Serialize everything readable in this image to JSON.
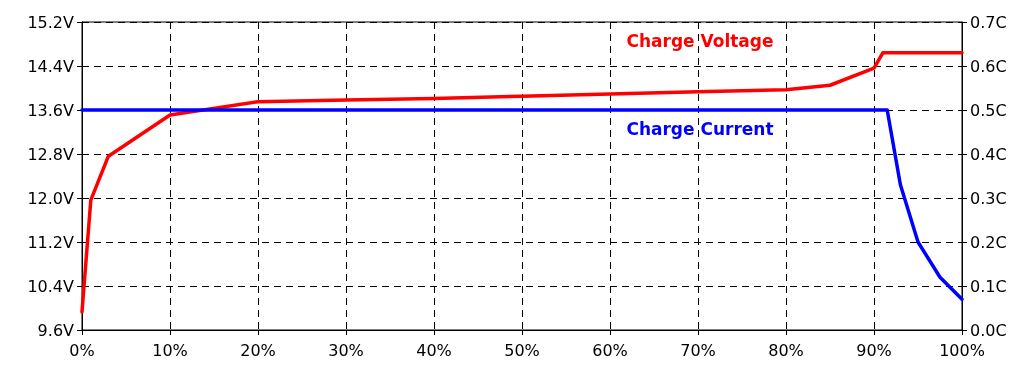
{
  "chart_data": {
    "type": "line",
    "x": [
      0,
      1,
      3,
      10,
      20,
      30,
      40,
      50,
      60,
      70,
      80,
      85,
      90,
      91,
      100
    ],
    "series": [
      {
        "name": "Charge Voltage",
        "color": "#ff0000",
        "values": [
          9.93,
          11.96,
          12.76,
          13.51,
          13.75,
          13.78,
          13.81,
          13.85,
          13.89,
          13.93,
          13.97,
          14.05,
          14.36,
          14.64,
          14.64
        ]
      },
      {
        "name": "Charge Current",
        "color": "#0000ff",
        "axis": "y2",
        "x": [
          0,
          91.5,
          93,
          95,
          97.5,
          100
        ],
        "values": [
          0.5,
          0.5,
          0.33,
          0.2,
          0.12,
          0.07
        ]
      }
    ],
    "xlim": [
      0,
      100
    ],
    "xticks": [
      {
        "value": 0,
        "label": "0%"
      },
      {
        "value": 10,
        "label": "10%"
      },
      {
        "value": 20,
        "label": "20%"
      },
      {
        "value": 30,
        "label": "30%"
      },
      {
        "value": 40,
        "label": "40%"
      },
      {
        "value": 50,
        "label": "50%"
      },
      {
        "value": 60,
        "label": "60%"
      },
      {
        "value": 70,
        "label": "70%"
      },
      {
        "value": 80,
        "label": "80%"
      },
      {
        "value": 90,
        "label": "90%"
      },
      {
        "value": 100,
        "label": "100%"
      }
    ],
    "ylim": [
      9.6,
      15.2
    ],
    "yticks": [
      {
        "value": 9.6,
        "label": "9.6V"
      },
      {
        "value": 10.4,
        "label": "10.4V"
      },
      {
        "value": 11.2,
        "label": "11.2V"
      },
      {
        "value": 12.0,
        "label": "12.0V"
      },
      {
        "value": 12.8,
        "label": "12.8V"
      },
      {
        "value": 13.6,
        "label": "13.6V"
      },
      {
        "value": 14.4,
        "label": "14.4V"
      },
      {
        "value": 15.2,
        "label": "15.2V"
      }
    ],
    "y2lim": [
      0,
      0.7
    ],
    "y2ticks": [
      {
        "value": 0,
        "label": "0.0C"
      },
      {
        "value": 0.1,
        "label": "0.1C"
      },
      {
        "value": 0.2,
        "label": "0.2C"
      },
      {
        "value": 0.3,
        "label": "0.3C"
      },
      {
        "value": 0.4,
        "label": "0.4C"
      },
      {
        "value": 0.5,
        "label": "0.5C"
      },
      {
        "value": 0.6,
        "label": "0.6C"
      },
      {
        "value": 0.7,
        "label": "0.7C"
      }
    ],
    "grid": true,
    "legend": false,
    "marker": "none",
    "line_style": "solid"
  }
}
